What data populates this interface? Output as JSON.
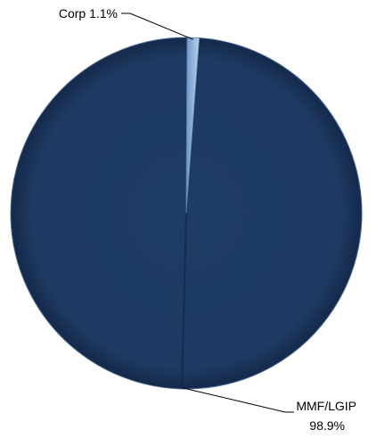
{
  "chart_data": {
    "type": "pie",
    "title": "",
    "slices": [
      {
        "name": "MMF/LGIP",
        "value": 98.9,
        "label": "MMF/LGIP",
        "value_label": "98.9%",
        "color": "#1f3c66"
      },
      {
        "name": "Corp",
        "value": 1.1,
        "label": "Corp 1.1%",
        "color": "#8fb3dd"
      }
    ],
    "legend": "none",
    "style": "3d-shaded"
  }
}
